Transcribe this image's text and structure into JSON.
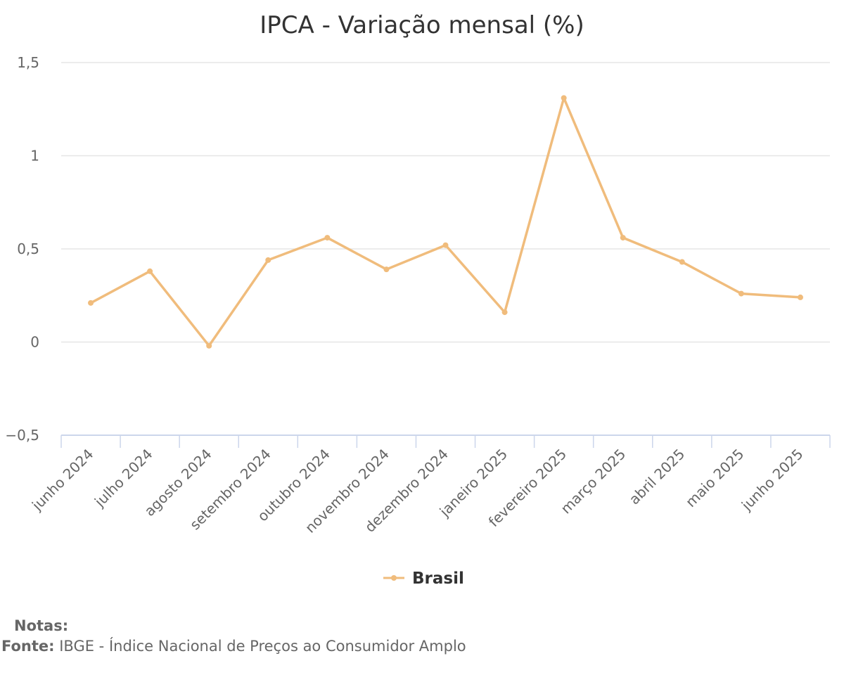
{
  "chart_data": {
    "type": "line",
    "title": "IPCA - Variação mensal (%)",
    "categories": [
      "junho 2024",
      "julho 2024",
      "agosto 2024",
      "setembro 2024",
      "outubro 2024",
      "novembro 2024",
      "dezembro 2024",
      "janeiro 2025",
      "fevereiro 2025",
      "março 2025",
      "abril 2025",
      "maio 2025",
      "junho 2025"
    ],
    "series": [
      {
        "name": "Brasil",
        "color": "#f0bc7c",
        "values": [
          0.21,
          0.38,
          -0.02,
          0.44,
          0.56,
          0.39,
          0.52,
          0.16,
          1.31,
          0.56,
          0.43,
          0.26,
          0.24
        ]
      }
    ],
    "ylim": [
      -0.5,
      1.5
    ],
    "yticks": [
      -0.5,
      0,
      0.5,
      1,
      1.5
    ],
    "ytick_labels": [
      "−0,5",
      "0",
      "0,5",
      "1",
      "1,5"
    ],
    "xlabel": "",
    "ylabel": "",
    "grid": true,
    "legend_position": "bottom-center"
  },
  "notes": {
    "label": "Notas:"
  },
  "source": {
    "label": "Fonte:",
    "text": " IBGE - Índice Nacional de Preços ao Consumidor Amplo"
  }
}
